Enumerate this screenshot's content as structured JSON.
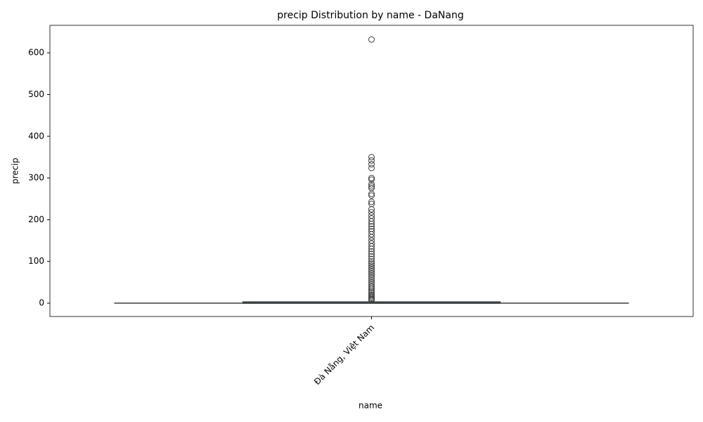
{
  "chart_data": {
    "type": "box",
    "title": "precip Distribution by name - DaNang",
    "x_label": "name",
    "y_label": "precip",
    "categories": [
      "Đà Nẵng, Việt Nam"
    ],
    "color": "#1f77b4",
    "boxes": [
      {
        "whislo": 0,
        "q1": 0,
        "median": 0,
        "q3": 3,
        "whishi": 7,
        "fliers": [
          632,
          350,
          342,
          333,
          324,
          300,
          296,
          285,
          280,
          276,
          262,
          258,
          243,
          238,
          225,
          218,
          210,
          203,
          196,
          190,
          184,
          178,
          172,
          165,
          158,
          150,
          143,
          136,
          130,
          124,
          118,
          112,
          106,
          100,
          95,
          90,
          85,
          80,
          75,
          70,
          65,
          60,
          55,
          50,
          45,
          40,
          36,
          32,
          28,
          24,
          20,
          17,
          14,
          11,
          9,
          7.5
        ]
      }
    ],
    "ylim": [
      -32,
      666
    ],
    "yticks": [
      0,
      100,
      200,
      300,
      400,
      500,
      600
    ]
  }
}
